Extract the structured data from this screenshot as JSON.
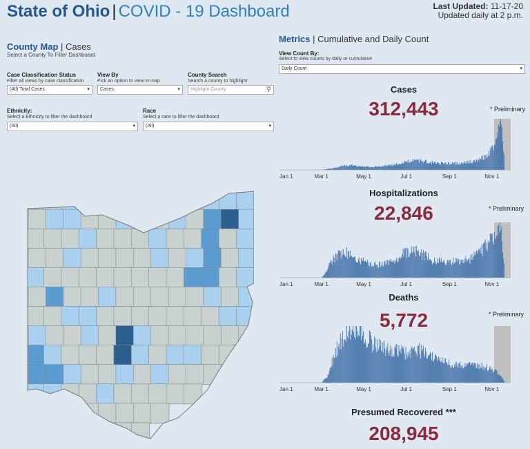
{
  "header": {
    "title": "State of Ohio",
    "separator": "|",
    "subtitle": "COVID - 19 Dashboard",
    "last_updated_label": "Last Updated:",
    "last_updated_value": "11-17-20",
    "update_note": "Updated daily at 2 p.m."
  },
  "left": {
    "section_title": "County Map",
    "section_sep": "|",
    "section_suffix": "Cases",
    "section_sub": "Select a County To Filter Dashboard",
    "case_status": {
      "label": "Case Classification Status",
      "sub": "Filter all views by case classification",
      "value": "(All) Total Cases"
    },
    "view_by": {
      "label": "View By",
      "sub": "Pick an option to view in map",
      "value": "Cases"
    },
    "county_search": {
      "label": "County Search",
      "sub": "Search a county to highlight",
      "placeholder": "Highlight County"
    },
    "ethnicity": {
      "label": "Ethnicity:",
      "sub": "Select a Ethnicity  to filter the dashboard",
      "value": "(All)"
    },
    "race": {
      "label": "Race",
      "sub": "Select a race to filter the dashboard",
      "value": "(All)"
    }
  },
  "right": {
    "section_title": "Metrics",
    "section_sep": "|",
    "section_suffix": "Cumulative and Daily Count",
    "view_count": {
      "label": "View Count By:",
      "sub": "Select to view counts by daily or cumulative",
      "value": "Daily Count"
    },
    "axis_ticks": [
      "Jan 1",
      "Mar 1",
      "May 1",
      "Jul 1",
      "Sep 1",
      "Nov 1"
    ],
    "metrics": [
      {
        "title": "Cases",
        "value": "312,443",
        "note": "* Preliminary"
      },
      {
        "title": "Hospitalizations",
        "value": "22,846",
        "note": "* Preliminary"
      },
      {
        "title": "Deaths",
        "value": "5,772",
        "note": "* Preliminary"
      },
      {
        "title": "Presumed Recovered ***",
        "value": "208,945"
      }
    ]
  },
  "colors": {
    "bar": "#3f6fa8",
    "number": "#8a2a3d",
    "shade": "#bfbfbf",
    "title": "#24578f",
    "map_dark": "#2b5f8f",
    "map_mid": "#5b9bd0",
    "map_light": "#a9d0ee",
    "map_gray": "#c8d1cf"
  },
  "chart_data": [
    {
      "type": "bar",
      "title": "Cases",
      "x_ticks": [
        "Jan 1",
        "Mar 1",
        "May 1",
        "Jul 1",
        "Sep 1",
        "Nov 1"
      ],
      "shaded_region": "preliminary (last ~2 weeks)",
      "series": [
        {
          "points": [
            [
              0,
              0
            ],
            [
              55,
              0
            ],
            [
              62,
              40
            ],
            [
              75,
              250
            ],
            [
              90,
              600
            ],
            [
              105,
              700
            ],
            [
              120,
              520
            ],
            [
              135,
              480
            ],
            [
              150,
              600
            ],
            [
              170,
              900
            ],
            [
              185,
              1300
            ],
            [
              200,
              1500
            ],
            [
              215,
              1200
            ],
            [
              230,
              1000
            ],
            [
              245,
              1000
            ],
            [
              260,
              1100
            ],
            [
              275,
              1300
            ],
            [
              290,
              1800
            ],
            [
              300,
              2500
            ],
            [
              305,
              3200
            ],
            [
              310,
              4200
            ],
            [
              312,
              5800
            ],
            [
              315,
              7000
            ],
            [
              318,
              8000
            ],
            [
              320,
              4500
            ],
            [
              322,
              2000
            ]
          ]
        }
      ]
    },
    {
      "type": "bar",
      "title": "Hospitalizations",
      "x_ticks": [
        "Jan 1",
        "Mar 1",
        "May 1",
        "Jul 1",
        "Sep 1",
        "Nov 1"
      ],
      "shaded_region": "preliminary (last ~2 weeks)",
      "series": [
        {
          "points": [
            [
              0,
              0
            ],
            [
              60,
              0
            ],
            [
              65,
              20
            ],
            [
              75,
              80
            ],
            [
              85,
              110
            ],
            [
              95,
              120
            ],
            [
              105,
              100
            ],
            [
              115,
              85
            ],
            [
              125,
              70
            ],
            [
              140,
              60
            ],
            [
              155,
              70
            ],
            [
              165,
              80
            ],
            [
              175,
              110
            ],
            [
              185,
              125
            ],
            [
              195,
              130
            ],
            [
              205,
              110
            ],
            [
              220,
              80
            ],
            [
              240,
              75
            ],
            [
              260,
              80
            ],
            [
              275,
              90
            ],
            [
              290,
              130
            ],
            [
              300,
              160
            ],
            [
              308,
              200
            ],
            [
              312,
              240
            ],
            [
              316,
              260
            ],
            [
              318,
              200
            ],
            [
              322,
              60
            ]
          ]
        }
      ]
    },
    {
      "type": "bar",
      "title": "Deaths",
      "x_ticks": [
        "Jan 1",
        "Mar 1",
        "May 1",
        "Jul 1",
        "Sep 1",
        "Nov 1"
      ],
      "shaded_region": "preliminary (last ~2 weeks)",
      "series": [
        {
          "points": [
            [
              0,
              0
            ],
            [
              60,
              0
            ],
            [
              70,
              10
            ],
            [
              80,
              40
            ],
            [
              95,
              60
            ],
            [
              105,
              70
            ],
            [
              115,
              65
            ],
            [
              125,
              55
            ],
            [
              140,
              45
            ],
            [
              160,
              40
            ],
            [
              180,
              38
            ],
            [
              200,
              40
            ],
            [
              220,
              30
            ],
            [
              240,
              25
            ],
            [
              260,
              22
            ],
            [
              280,
              20
            ],
            [
              295,
              20
            ],
            [
              305,
              16
            ],
            [
              315,
              12
            ],
            [
              322,
              2
            ]
          ]
        }
      ]
    }
  ]
}
